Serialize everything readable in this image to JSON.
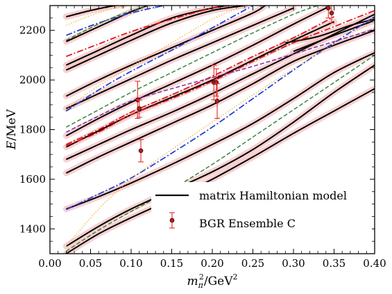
{
  "chart_data": {
    "type": "line",
    "title": "",
    "xlabel": {
      "base": "m",
      "sub": "π",
      "sup": "2",
      "rest": "/GeV",
      "rest_sup": "2"
    },
    "ylabel": {
      "var": "E",
      "rest": "/MeV"
    },
    "xlim": [
      0.0,
      0.4
    ],
    "ylim": [
      1300,
      2300
    ],
    "x_ticks": [
      0.0,
      0.05,
      0.1,
      0.15,
      0.2,
      0.25,
      0.3,
      0.35,
      0.4
    ],
    "x_tick_labels": [
      "0.00",
      "0.05",
      "0.10",
      "0.15",
      "0.20",
      "0.25",
      "0.30",
      "0.35",
      "0.40"
    ],
    "y_ticks": [
      1400,
      1600,
      1800,
      2000,
      2200
    ],
    "y_tick_labels": [
      "1400",
      "1600",
      "1800",
      "2000",
      "2200"
    ],
    "grid": false,
    "legend": {
      "position": "bottom-right",
      "entries": [
        {
          "label": "matrix Hamiltonian model",
          "kind": "line",
          "color": "#000000"
        },
        {
          "label": "BGR Ensemble C",
          "kind": "errorbar",
          "color": "#c62828"
        }
      ]
    },
    "colors": {
      "model": "#000000",
      "band": "#f4c2c2",
      "data_point": "#b71c1c",
      "error_bar": "#e53935",
      "blue": "#1f3fd9",
      "red": "#e01414",
      "green": "#2e7d2e",
      "orange": "#f5a623",
      "purple": "#7b1fa2"
    },
    "series": [
      {
        "name": "matrix Hamiltonian model",
        "style": "solid",
        "color": "#000000",
        "curves": [
          {
            "x": [
              0.02,
              0.06,
              0.1,
              0.15,
              0.2,
              0.25,
              0.3,
              0.35,
              0.4
            ],
            "y": [
              1300,
              1380,
              1445,
              1520,
              1600,
              1690,
              1785,
              1875,
              1965
            ]
          },
          {
            "x": [
              0.02,
              0.06,
              0.1,
              0.15,
              0.2,
              0.25,
              0.3,
              0.35,
              0.4
            ],
            "y": [
              1330,
              1410,
              1480,
              1555,
              1630,
              1720,
              1830,
              1950,
              2060
            ]
          },
          {
            "x": [
              0.02,
              0.06,
              0.1,
              0.15,
              0.2,
              0.25,
              0.3,
              0.35,
              0.4
            ],
            "y": [
              1480,
              1530,
              1585,
              1660,
              1740,
              1825,
              1925,
              2030,
              2110
            ]
          },
          {
            "x": [
              0.02,
              0.06,
              0.1,
              0.15,
              0.2,
              0.25,
              0.3,
              0.35,
              0.4
            ],
            "y": [
              1625,
              1690,
              1750,
              1825,
              1900,
              1985,
              2075,
              2140,
              2200
            ]
          },
          {
            "x": [
              0.02,
              0.06,
              0.1,
              0.15,
              0.2,
              0.25,
              0.3,
              0.35,
              0.4
            ],
            "y": [
              1680,
              1740,
              1800,
              1870,
              1945,
              2025,
              2105,
              2185,
              2265
            ]
          },
          {
            "x": [
              0.02,
              0.06,
              0.1,
              0.15,
              0.2,
              0.25,
              0.3,
              0.35
            ],
            "y": [
              1730,
              1795,
              1860,
              1930,
              2000,
              2080,
              2160,
              2235
            ]
          },
          {
            "x": [
              0.02,
              0.06,
              0.1,
              0.15,
              0.2,
              0.25,
              0.3,
              0.34
            ],
            "y": [
              1775,
              1845,
              1910,
              1985,
              2060,
              2140,
              2225,
              2290
            ]
          },
          {
            "x": [
              0.02,
              0.06,
              0.1,
              0.15,
              0.2,
              0.25,
              0.3
            ],
            "y": [
              1885,
              1945,
              2005,
              2080,
              2150,
              2220,
              2290
            ]
          },
          {
            "x": [
              0.02,
              0.06,
              0.1,
              0.15,
              0.2,
              0.25,
              0.265
            ],
            "y": [
              1935,
              2000,
              2060,
              2130,
              2200,
              2270,
              2300
            ]
          },
          {
            "x": [
              0.02,
              0.06,
              0.1,
              0.15,
              0.2,
              0.24
            ],
            "y": [
              2040,
              2100,
              2160,
              2230,
              2280,
              2300
            ]
          },
          {
            "x": [
              0.02,
              0.06,
              0.1,
              0.15,
              0.2,
              0.22
            ],
            "y": [
              2060,
              2120,
              2180,
              2250,
              2290,
              2300
            ]
          },
          {
            "x": [
              0.02,
              0.05,
              0.08,
              0.1,
              0.12
            ],
            "y": [
              2155,
              2200,
              2245,
              2275,
              2300
            ]
          },
          {
            "x": [
              0.02,
              0.05,
              0.08,
              0.09
            ],
            "y": [
              2255,
              2280,
              2300,
              2300
            ]
          },
          {
            "x": [
              0.29,
              0.33,
              0.37,
              0.4
            ],
            "y": [
              2150,
              2175,
              2220,
              2245
            ]
          },
          {
            "x": [
              0.3,
              0.35,
              0.4
            ],
            "y": [
              2115,
              2180,
              2240
            ]
          }
        ]
      },
      {
        "name": "",
        "style": "dashdot",
        "color": "#1f3fd9",
        "curves": [
          {
            "x": [
              0.02,
              0.06,
              0.1,
              0.15,
              0.2,
              0.25,
              0.3,
              0.35,
              0.4
            ],
            "y": [
              1478,
              1540,
              1605,
              1705,
              1810,
              1925,
              2040,
              2150,
              2255
            ]
          },
          {
            "x": [
              0.02,
              0.06,
              0.1,
              0.15,
              0.2,
              0.25
            ],
            "y": [
              1875,
              1960,
              2035,
              2120,
              2210,
              2300
            ]
          },
          {
            "x": [
              0.02,
              0.06,
              0.1,
              0.14
            ],
            "y": [
              2180,
              2230,
              2270,
              2300
            ]
          }
        ]
      },
      {
        "name": "",
        "style": "dashdot",
        "color": "#e01414",
        "curves": [
          {
            "x": [
              0.02,
              0.06,
              0.1,
              0.15,
              0.2,
              0.25,
              0.3,
              0.35
            ],
            "y": [
              1740,
              1800,
              1870,
              1940,
              2015,
              2095,
              2170,
              2255
            ]
          },
          {
            "x": [
              0.02,
              0.06,
              0.1,
              0.15,
              0.2,
              0.25,
              0.3,
              0.35,
              0.4
            ],
            "y": [
              1735,
              1790,
              1860,
              1925,
              1995,
              2075,
              2150,
              2215,
              2280
            ]
          },
          {
            "x": [
              0.02,
              0.06,
              0.1,
              0.15,
              0.2,
              0.22
            ],
            "y": [
              2095,
              2145,
              2195,
              2245,
              2290,
              2300
            ]
          }
        ]
      },
      {
        "name": "",
        "style": "dashed",
        "color": "#2e7d2e",
        "curves": [
          {
            "x": [
              0.02,
              0.06,
              0.1,
              0.15,
              0.2,
              0.25,
              0.3,
              0.35,
              0.4
            ],
            "y": [
              1310,
              1395,
              1470,
              1560,
              1660,
              1770,
              1880,
              1990,
              2100
            ]
          },
          {
            "x": [
              0.02,
              0.06,
              0.1,
              0.15,
              0.2,
              0.25,
              0.3,
              0.33
            ],
            "y": [
              1810,
              1880,
              1950,
              2030,
              2110,
              2190,
              2265,
              2300
            ]
          },
          {
            "x": [
              0.02,
              0.05,
              0.08,
              0.12
            ],
            "y": [
              2160,
              2210,
              2255,
              2300
            ]
          }
        ]
      },
      {
        "name": "",
        "style": "dotted",
        "color": "#f5a623",
        "curves": [
          {
            "x": [
              0.02,
              0.06,
              0.1,
              0.15,
              0.2,
              0.25,
              0.3,
              0.35,
              0.4
            ],
            "y": [
              1330,
              1480,
              1600,
              1720,
              1830,
              1940,
              2045,
              2145,
              2240
            ]
          },
          {
            "x": [
              0.02,
              0.05,
              0.1,
              0.15,
              0.2,
              0.24
            ],
            "y": [
              1880,
              1955,
              2055,
              2150,
              2245,
              2300
            ]
          },
          {
            "x": [
              0.02,
              0.05,
              0.08,
              0.1
            ],
            "y": [
              2220,
              2260,
              2290,
              2300
            ]
          }
        ]
      },
      {
        "name": "",
        "style": "dashed",
        "color": "#7b1fa2",
        "curves": [
          {
            "x": [
              0.02,
              0.06,
              0.1,
              0.15,
              0.2,
              0.25,
              0.3,
              0.35,
              0.4
            ],
            "y": [
              1790,
              1855,
              1915,
              1965,
              2010,
              2055,
              2105,
              2155,
              2205
            ]
          }
        ]
      }
    ],
    "points": [
      {
        "x": 0.108,
        "y": 1920,
        "err": 75
      },
      {
        "x": 0.11,
        "y": 1885,
        "err": 35
      },
      {
        "x": 0.112,
        "y": 1715,
        "err": 45
      },
      {
        "x": 0.202,
        "y": 1990,
        "err": 70
      },
      {
        "x": 0.205,
        "y": 1990,
        "err": 55
      },
      {
        "x": 0.206,
        "y": 1915,
        "err": 70
      },
      {
        "x": 0.343,
        "y": 2290,
        "err": 40
      },
      {
        "x": 0.347,
        "y": 2270,
        "err": 40
      }
    ]
  }
}
